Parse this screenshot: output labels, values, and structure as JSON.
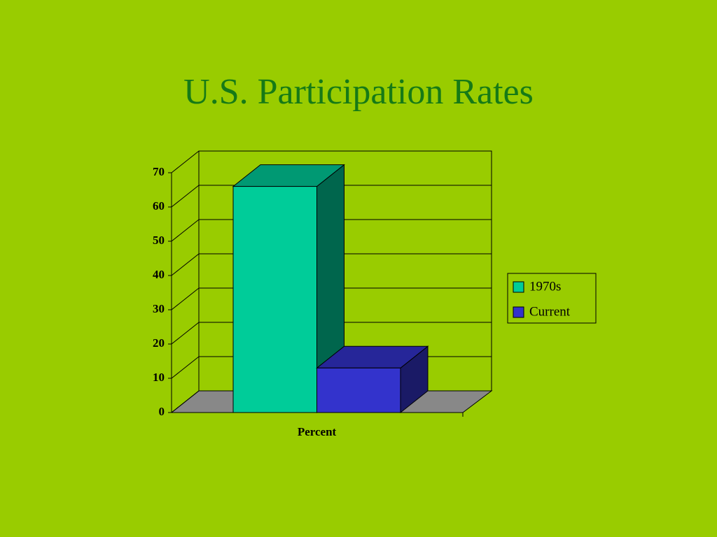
{
  "chart_data": {
    "type": "bar3d",
    "title": "U.S. Participation Rates",
    "categories": [
      "Percent"
    ],
    "series": [
      {
        "name": "1970s",
        "color": "#00cc99",
        "values": [
          66
        ]
      },
      {
        "name": "Current",
        "color": "#3333cc",
        "values": [
          13
        ]
      }
    ],
    "ylim": [
      0,
      70
    ],
    "yticks": [
      0,
      10,
      20,
      30,
      40,
      50,
      60,
      70
    ],
    "grid": true,
    "legend": "right"
  }
}
